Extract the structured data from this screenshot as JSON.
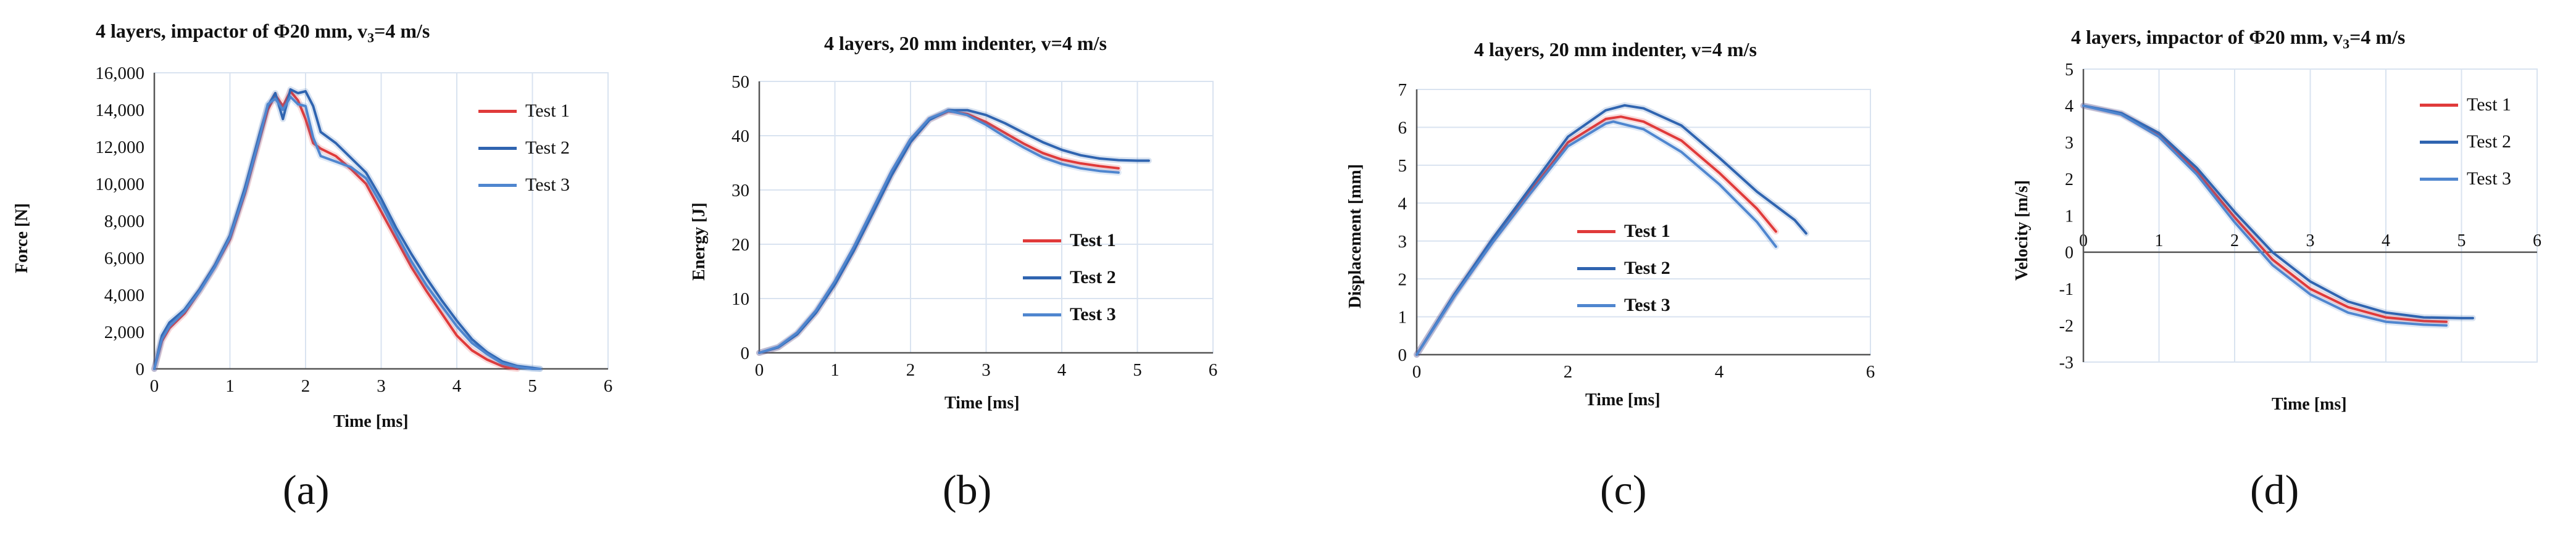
{
  "panels": [
    {
      "id": "a",
      "title_pre": "4 layers, impactor of Φ20 mm, v",
      "title_sub": "3",
      "title_post": "=4 m/s",
      "caption": "(a)"
    },
    {
      "id": "b",
      "title": "4 layers, 20 mm indenter, v=4 m/s",
      "caption": "(b)"
    },
    {
      "id": "c",
      "title": "4 layers, 20 mm indenter, v=4 m/s",
      "caption": "(c)"
    },
    {
      "id": "d",
      "title_pre": "4 layers, impactor of Φ20 mm, v",
      "title_sub": "3",
      "title_post": "=4 m/s",
      "caption": "(d)"
    }
  ],
  "colors": {
    "test1": "#e03a3a",
    "test2": "#2f64b0",
    "test3": "#4f86cf",
    "grid": "#d9e3f0",
    "axis": "#555555"
  },
  "chart_data": [
    {
      "type": "line",
      "title": "4 layers, impactor of Φ20 mm, v3=4 m/s",
      "xlabel": "Time [ms]",
      "ylabel": "Force [N]",
      "xlim": [
        0,
        6
      ],
      "ylim": [
        0,
        16000
      ],
      "xticks": [
        "0",
        "1",
        "2",
        "3",
        "4",
        "5",
        "6"
      ],
      "yticks": [
        "0",
        "2,000",
        "4,000",
        "6,000",
        "8,000",
        "10,000",
        "12,000",
        "14,000",
        "16,000"
      ],
      "grid": "vertical",
      "legend": "top-right",
      "series": [
        {
          "name": "Test 1",
          "x": [
            0,
            0.1,
            0.2,
            0.4,
            0.6,
            0.8,
            1.0,
            1.2,
            1.4,
            1.5,
            1.6,
            1.7,
            1.8,
            1.9,
            2.0,
            2.1,
            2.2,
            2.4,
            2.6,
            2.8,
            3.0,
            3.2,
            3.4,
            3.6,
            3.8,
            4.0,
            4.2,
            4.4,
            4.6,
            4.7,
            4.8
          ],
          "y": [
            0,
            1500,
            2200,
            3000,
            4200,
            5500,
            7000,
            9500,
            12500,
            14000,
            14800,
            14200,
            15000,
            14500,
            13500,
            12200,
            11900,
            11500,
            10800,
            10000,
            8500,
            7000,
            5500,
            4200,
            3000,
            1800,
            1000,
            500,
            150,
            50,
            0
          ]
        },
        {
          "name": "Test 2",
          "x": [
            0,
            0.1,
            0.2,
            0.4,
            0.6,
            0.8,
            1.0,
            1.2,
            1.4,
            1.5,
            1.6,
            1.7,
            1.8,
            1.9,
            2.0,
            2.1,
            2.2,
            2.4,
            2.6,
            2.8,
            3.0,
            3.2,
            3.4,
            3.6,
            3.8,
            4.0,
            4.2,
            4.4,
            4.6,
            4.8,
            5.0,
            5.1
          ],
          "y": [
            0,
            1800,
            2500,
            3200,
            4300,
            5600,
            7200,
            9800,
            12800,
            14200,
            14900,
            13500,
            15100,
            14900,
            15000,
            14200,
            12800,
            12200,
            11400,
            10600,
            9200,
            7600,
            6200,
            4900,
            3700,
            2600,
            1600,
            900,
            400,
            150,
            50,
            0
          ]
        },
        {
          "name": "Test 3",
          "x": [
            0,
            0.1,
            0.2,
            0.4,
            0.6,
            0.8,
            1.0,
            1.2,
            1.4,
            1.5,
            1.6,
            1.7,
            1.8,
            1.9,
            2.0,
            2.1,
            2.2,
            2.4,
            2.6,
            2.8,
            3.0,
            3.2,
            3.4,
            3.6,
            3.8,
            4.0,
            4.2,
            4.4,
            4.6,
            4.8,
            5.0,
            5.1
          ],
          "y": [
            0,
            1600,
            2300,
            3100,
            4200,
            5500,
            7100,
            9600,
            12600,
            14300,
            14600,
            14000,
            14700,
            14300,
            14200,
            12500,
            11500,
            11200,
            10900,
            10300,
            8900,
            7300,
            5800,
            4500,
            3400,
            2300,
            1400,
            800,
            300,
            100,
            0,
            0
          ]
        }
      ]
    },
    {
      "type": "line",
      "title": "4 layers, 20 mm indenter, v=4 m/s",
      "xlabel": "Time [ms]",
      "ylabel": "Energy [J]",
      "xlim": [
        0,
        6
      ],
      "ylim": [
        0,
        50
      ],
      "xticks": [
        "0",
        "1",
        "2",
        "3",
        "4",
        "5",
        "6"
      ],
      "yticks": [
        "0",
        "10",
        "20",
        "30",
        "40",
        "50"
      ],
      "grid": "both",
      "legend": "center-right",
      "series": [
        {
          "name": "Test 1",
          "x": [
            0,
            0.25,
            0.5,
            0.75,
            1.0,
            1.25,
            1.5,
            1.75,
            2.0,
            2.25,
            2.5,
            2.75,
            3.0,
            3.25,
            3.5,
            3.75,
            4.0,
            4.25,
            4.5,
            4.75
          ],
          "y": [
            0,
            1.0,
            3.5,
            7.5,
            12.8,
            19.0,
            26.0,
            33.0,
            39.0,
            43.0,
            44.5,
            44.0,
            42.5,
            40.5,
            38.5,
            36.8,
            35.6,
            34.9,
            34.4,
            34.0
          ]
        },
        {
          "name": "Test 2",
          "x": [
            0,
            0.25,
            0.5,
            0.75,
            1.0,
            1.25,
            1.5,
            1.75,
            2.0,
            2.25,
            2.5,
            2.75,
            3.0,
            3.25,
            3.5,
            3.75,
            4.0,
            4.25,
            4.5,
            4.75,
            5.0,
            5.15
          ],
          "y": [
            0,
            1.0,
            3.4,
            7.4,
            12.6,
            18.8,
            25.7,
            32.7,
            38.8,
            42.9,
            44.7,
            44.7,
            43.8,
            42.3,
            40.5,
            38.8,
            37.4,
            36.4,
            35.8,
            35.5,
            35.4,
            35.4
          ]
        },
        {
          "name": "Test 3",
          "x": [
            0,
            0.25,
            0.5,
            0.75,
            1.0,
            1.25,
            1.5,
            1.75,
            2.0,
            2.25,
            2.5,
            2.75,
            3.0,
            3.25,
            3.5,
            3.75,
            4.0,
            4.25,
            4.5,
            4.75
          ],
          "y": [
            0,
            1.1,
            3.7,
            7.8,
            13.2,
            19.5,
            26.5,
            33.5,
            39.4,
            43.2,
            44.6,
            43.8,
            42.0,
            39.8,
            37.8,
            36.0,
            34.8,
            34.0,
            33.5,
            33.2
          ]
        }
      ]
    },
    {
      "type": "line",
      "title": "4 layers, 20 mm indenter, v=4 m/s",
      "xlabel": "Time [ms]",
      "ylabel": "Displacement [mm]",
      "xlim": [
        0,
        6
      ],
      "ylim": [
        0,
        7
      ],
      "xticks": [
        "0",
        "2",
        "4",
        "6"
      ],
      "yticks": [
        "0",
        "1",
        "2",
        "3",
        "4",
        "5",
        "6",
        "7"
      ],
      "grid": "horizontal",
      "legend": "center",
      "series": [
        {
          "name": "Test 1",
          "x": [
            0,
            0.5,
            1.0,
            1.5,
            2.0,
            2.5,
            2.7,
            3.0,
            3.5,
            4.0,
            4.5,
            4.75
          ],
          "y": [
            0,
            1.58,
            3.0,
            4.3,
            5.6,
            6.22,
            6.28,
            6.15,
            5.65,
            4.8,
            3.85,
            3.25
          ]
        },
        {
          "name": "Test 2",
          "x": [
            0,
            0.5,
            1.0,
            1.5,
            2.0,
            2.5,
            2.75,
            3.0,
            3.5,
            4.0,
            4.5,
            5.0,
            5.15
          ],
          "y": [
            0,
            1.6,
            3.05,
            4.4,
            5.75,
            6.45,
            6.58,
            6.5,
            6.05,
            5.2,
            4.3,
            3.55,
            3.2
          ]
        },
        {
          "name": "Test 3",
          "x": [
            0,
            0.5,
            1.0,
            1.5,
            2.0,
            2.5,
            2.6,
            3.0,
            3.5,
            4.0,
            4.5,
            4.75
          ],
          "y": [
            0,
            1.55,
            2.95,
            4.25,
            5.5,
            6.1,
            6.15,
            5.95,
            5.35,
            4.5,
            3.5,
            2.85
          ]
        }
      ]
    },
    {
      "type": "line",
      "title": "4 layers, impactor of Φ20 mm, v3=4 m/s",
      "xlabel": "Time [ms]",
      "ylabel": "Velocity [m/s]",
      "xlim": [
        0,
        6
      ],
      "ylim": [
        -3,
        5
      ],
      "xticks": [
        "0",
        "1",
        "2",
        "3",
        "4",
        "5",
        "6"
      ],
      "yticks": [
        "-3",
        "-2",
        "-1",
        "0",
        "1",
        "2",
        "3",
        "4",
        "5"
      ],
      "grid": "vertical",
      "legend": "top-right",
      "series": [
        {
          "name": "Test 1",
          "x": [
            0,
            0.5,
            1.0,
            1.5,
            2.0,
            2.5,
            3.0,
            3.5,
            4.0,
            4.5,
            4.8
          ],
          "y": [
            4.0,
            3.78,
            3.2,
            2.2,
            0.95,
            -0.2,
            -1.0,
            -1.5,
            -1.78,
            -1.88,
            -1.9
          ]
        },
        {
          "name": "Test 2",
          "x": [
            0,
            0.5,
            1.0,
            1.5,
            2.0,
            2.5,
            3.0,
            3.5,
            4.0,
            4.5,
            5.0,
            5.15
          ],
          "y": [
            4.0,
            3.8,
            3.25,
            2.3,
            1.1,
            0.0,
            -0.8,
            -1.35,
            -1.65,
            -1.78,
            -1.8,
            -1.8
          ]
        },
        {
          "name": "Test 3",
          "x": [
            0,
            0.5,
            1.0,
            1.5,
            2.0,
            2.5,
            3.0,
            3.5,
            4.0,
            4.5,
            4.8
          ],
          "y": [
            4.0,
            3.76,
            3.15,
            2.12,
            0.82,
            -0.35,
            -1.15,
            -1.65,
            -1.9,
            -1.98,
            -2.0
          ]
        }
      ]
    }
  ]
}
